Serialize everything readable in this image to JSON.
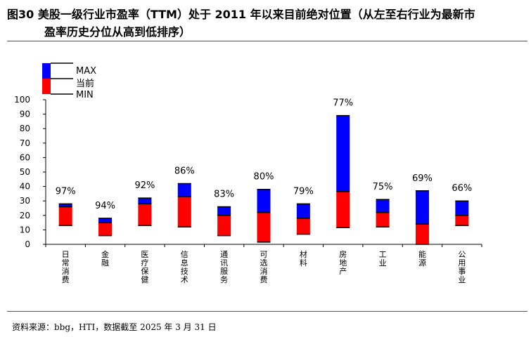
{
  "title": {
    "line1": "图30 美股一级行业市盈率（TTM）处于 2011 年以来目前绝对位置（从左至右行业为最新市",
    "line2": "盈率历史分位从高到低排序）"
  },
  "source": "资料来源：bbg，HTI，数据截至 2025 年 3 月 31 日",
  "chart_data": {
    "type": "bar",
    "categories": [
      "日常消费",
      "金融",
      "医疗保健",
      "信息技术",
      "通讯服务",
      "可选消费",
      "材料",
      "房地产",
      "工业",
      "能源",
      "公用事业"
    ],
    "series": [
      {
        "name": "MIN",
        "values": [
          13,
          6,
          13,
          12,
          6,
          1.5,
          7,
          11.5,
          12,
          0,
          13
        ]
      },
      {
        "name": "当前",
        "values": [
          26,
          15,
          28,
          33,
          20,
          22,
          18,
          36.5,
          22,
          14,
          20
        ]
      },
      {
        "name": "MAX",
        "values": [
          28,
          18,
          32,
          42,
          26,
          38,
          28,
          89,
          31,
          37,
          30
        ]
      }
    ],
    "percentile_labels": [
      "97%",
      "94%",
      "92%",
      "86%",
      "83%",
      "80%",
      "79%",
      "77%",
      "75%",
      "69%",
      "66%"
    ],
    "ylim": [
      0,
      100
    ],
    "yticks": [
      0,
      10,
      20,
      30,
      40,
      50,
      60,
      70,
      80,
      90,
      100
    ],
    "legend": {
      "items": [
        "MAX",
        "当前",
        "MIN"
      ],
      "placement": "top-left"
    },
    "colors": {
      "max": "#0000ff",
      "current": "#ff0000",
      "min_line": "#000000"
    },
    "grid": false
  }
}
